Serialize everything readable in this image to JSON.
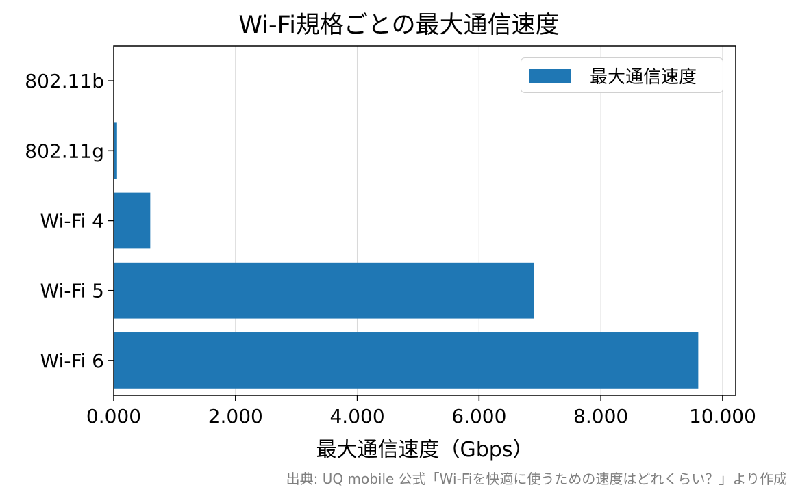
{
  "chart_data": {
    "type": "bar",
    "orientation": "horizontal",
    "title": "Wi-Fi規格ごとの最大通信速度",
    "xlabel": "最大通信速度（Gbps）",
    "ylabel": "",
    "categories": [
      "802.11b",
      "802.11g",
      "Wi-Fi 4",
      "Wi-Fi 5",
      "Wi-Fi 6"
    ],
    "series": [
      {
        "name": "最大通信速度",
        "values": [
          0.011,
          0.054,
          0.6,
          6.9,
          9.6
        ]
      }
    ],
    "xlim": [
      0,
      10.0
    ],
    "xticks": [
      0,
      2,
      4,
      6,
      8,
      10
    ],
    "xtick_labels": [
      "0.000",
      "2.000",
      "4.000",
      "6.000",
      "8.000",
      "10.000"
    ],
    "grid": "vertical",
    "legend_position": "top-right",
    "bar_color": "#1f77b4",
    "source_note": "出典: UQ mobile 公式「Wi-Fiを快適に使うための速度はどれくらい？」より作成"
  }
}
